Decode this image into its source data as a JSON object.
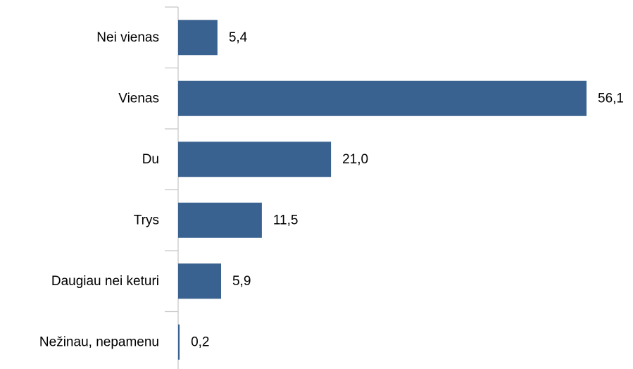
{
  "chart_data": {
    "type": "bar",
    "orientation": "horizontal",
    "categories": [
      "Nei vienas",
      "Vienas",
      "Du",
      "Trys",
      "Daugiau nei keturi",
      "Nežinau, nepamenu"
    ],
    "values": [
      5.4,
      56.1,
      21.0,
      11.5,
      5.9,
      0.2
    ],
    "value_labels": [
      "5,4",
      "56,1",
      "21,0",
      "11,5",
      "5,9",
      "0,2"
    ],
    "title": "",
    "xlabel": "",
    "ylabel": "",
    "xlim": [
      0,
      56.1
    ],
    "grid": false,
    "legend": "none",
    "bar_color": "#3a6291"
  }
}
